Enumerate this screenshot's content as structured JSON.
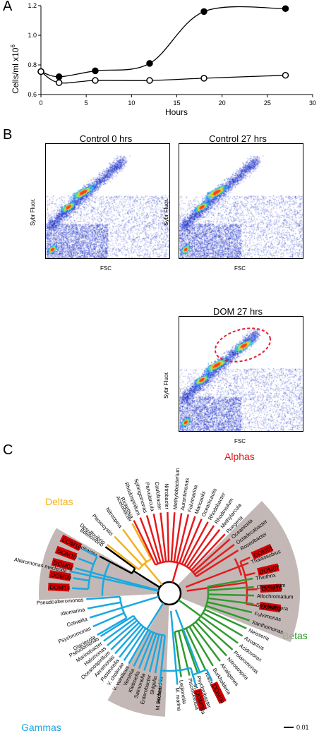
{
  "panels": {
    "A": "A",
    "B": "B",
    "C": "C"
  },
  "chart_data": {
    "type": "line",
    "xlabel": "Hours",
    "ylabel": "Cells/ml x10",
    "ylabel_sup": "6",
    "xlim": [
      0,
      30
    ],
    "ylim": [
      0.6,
      1.2
    ],
    "xticks": [
      0,
      5,
      10,
      15,
      20,
      25,
      30
    ],
    "yticks": [
      0.6,
      0.8,
      1.0,
      1.2
    ],
    "xtick_labels": [
      "0",
      "5",
      "10",
      "15",
      "20",
      "25",
      "30"
    ],
    "ytick_labels": [
      "0.6",
      "0.8",
      "1.0",
      "1.2"
    ],
    "series": [
      {
        "marker": "filled",
        "x": [
          0,
          2,
          6,
          12,
          18,
          27
        ],
        "y": [
          0.755,
          0.72,
          0.76,
          0.81,
          1.16,
          1.18
        ]
      },
      {
        "marker": "open",
        "x": [
          0,
          2,
          6,
          12,
          18,
          27
        ],
        "y": [
          0.755,
          0.68,
          0.695,
          0.695,
          0.71,
          0.73
        ]
      }
    ]
  },
  "flow": {
    "plots": [
      {
        "title": "Control 0 hrs",
        "xlabel": "FSC",
        "ylabel": "Sybr Fluor.",
        "gate": false
      },
      {
        "title": "Control 27 hrs",
        "xlabel": "FSC",
        "ylabel": "Sybr Fluor.",
        "gate": false
      },
      {
        "title": "DOM 27 hrs",
        "xlabel": "FSC",
        "ylabel": "Sybr Fluor.",
        "gate": true
      }
    ]
  },
  "tree": {
    "group_labels": {
      "alphas": "Alphas",
      "deltas": "Deltas",
      "betas": "Betas",
      "gammas": "Gammas"
    },
    "colors": {
      "alphas": "#e41a1c",
      "deltas": "#f4b11c",
      "betas": "#2e9b2e",
      "gammas": "#1ba8e0",
      "highlight": "#d40000",
      "shade": "#b9aca9"
    },
    "scale_label": "0.01",
    "alphas_taxa": [
      "Helicobacter",
      "Bdellovibrio",
      "Desulfovibrio",
      "Plesiocystis",
      "Nitrospina",
      "Acetobacter",
      "Rickettsia",
      "Rhodospirillum",
      "Sphingomonas",
      "Parvularcula",
      "Caulobacter",
      "Nitrobacter",
      "Methylobacterium",
      "Aurantimonas",
      "Fulvimarina",
      "Maricaulis",
      "Oceanicaulis",
      "Rhodobacter",
      "Rhodovulum",
      "Methylarcula",
      "Ruegeria",
      "Oceanicola",
      "Octadecabacter",
      "Roseobacter",
      "Thalassobius"
    ],
    "alpha_dom": [
      "DOM01",
      "DOM07",
      "DOM16",
      "DOM03"
    ],
    "betas_taxa": [
      "Thiothrix",
      "Chromatium",
      "Allochromatium",
      "Salinisphaera",
      "Fulvimonas",
      "Xanthomonas",
      "Neisseria",
      "Azoarcus",
      "Acidovorax",
      "Polaromonas",
      "Nitrosospira",
      "Alcaligenes",
      "Burkholderia",
      "Ralstonia",
      "Psychrobacter",
      "Piscirickettsia",
      "Legionella"
    ],
    "gamma_left_taxa": [
      "Alteromonas macleodii",
      "Glaciecola",
      "Psychromonas",
      "Colwellia",
      "Idiomarina",
      "Pseudoalteromonas",
      "Escherichia",
      "Shigella",
      "Enterobacter",
      "Salmonella",
      "Klebsiella",
      "Yersinia",
      "V. vulnificus",
      "V. cholerae",
      "Pasteurella",
      "Aeromonas",
      "Oceanospirillum",
      "Halomonas",
      "Marinobacter",
      "Pseudomonas",
      "M. thalassica",
      "M. marina",
      "M. arctica"
    ],
    "gamma_dom_left": [
      "DOM14",
      "DOM09",
      "DOM02",
      "DOM10",
      "DOM18"
    ],
    "gamma_dom_right": [
      "DOM04",
      "DOM08"
    ]
  }
}
